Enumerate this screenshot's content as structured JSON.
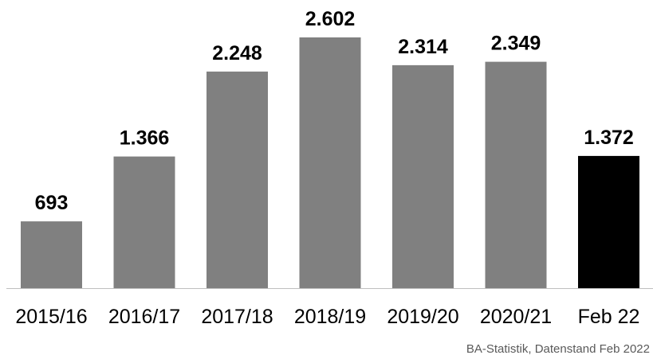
{
  "chart_data": {
    "type": "bar",
    "categories": [
      "2015/16",
      "2016/17",
      "2017/18",
      "2018/19",
      "2019/20",
      "2020/21",
      "Feb 22"
    ],
    "values": [
      693,
      1366,
      2248,
      2602,
      2314,
      2349,
      1372
    ],
    "value_labels": [
      "693",
      "1.366",
      "2.248",
      "2.602",
      "2.314",
      "2.349",
      "1.372"
    ],
    "ylim": [
      0,
      2602
    ],
    "grid": false,
    "colors": {
      "bar": "#808080",
      "highlight_bar": "#000000",
      "axis": "#bfbfbf"
    },
    "highlight_index": 6
  },
  "source_note": "BA-Statistik, Datenstand Feb 2022"
}
